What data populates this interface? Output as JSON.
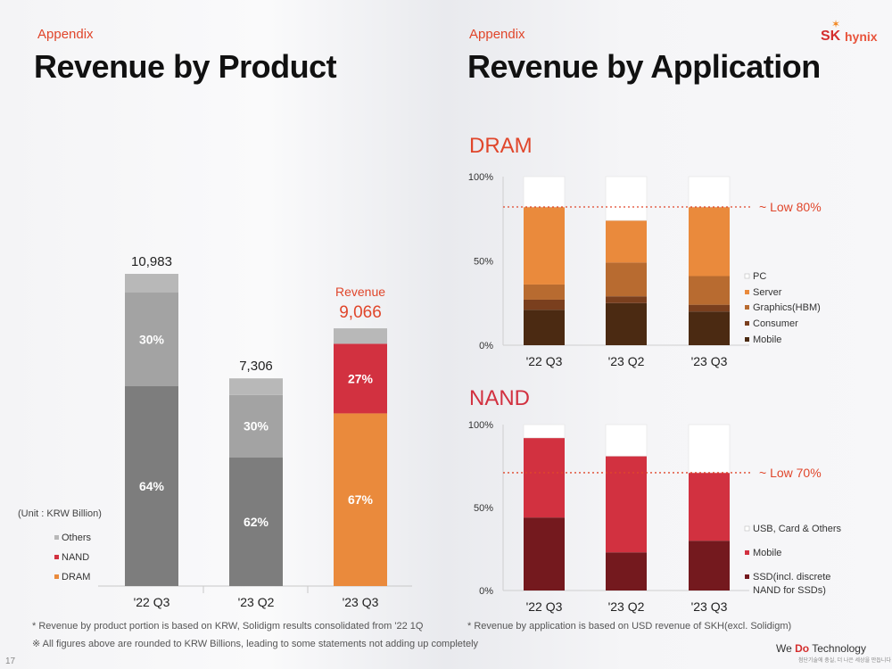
{
  "left": {
    "tag": "Appendix",
    "title": "Revenue by Product"
  },
  "right": {
    "tag": "Appendix",
    "title": "Revenue by Application"
  },
  "logo": {
    "brand": "SK",
    "name": "hynix"
  },
  "colors": {
    "accent": "#e0462b",
    "others": "#b8b8b8",
    "nand": "#d23140",
    "dram": "#ea8a3c",
    "gray_light": "#a3a3a3",
    "gray_dark": "#7d7d7d",
    "pc": "#ffffff",
    "server": "#ea8a3c",
    "graphics": "#b86b30",
    "consumer": "#7a3f1e",
    "mobile_dram": "#4b2a12",
    "usb": "#ffffff",
    "mobile_nand": "#d23140",
    "ssd": "#74191e"
  },
  "chart_data": [
    {
      "type": "bar",
      "stacked": true,
      "title": "Revenue by Product",
      "unit_label": "(Unit : KRW Billion)",
      "categories": [
        "'22 Q3",
        "'23 Q2",
        "'23 Q3"
      ],
      "totals": [
        "10,983",
        "7,306",
        "9,066"
      ],
      "total_values": [
        10983,
        7306,
        9066
      ],
      "revenue_label": "Revenue",
      "legend": [
        "Others",
        "NAND",
        "DRAM"
      ],
      "bars": [
        {
          "segments": [
            {
              "value": 64,
              "label": "64%",
              "color": "#7d7d7d"
            },
            {
              "value": 30,
              "label": "30%",
              "color": "#a3a3a3"
            },
            {
              "value": 6,
              "label": "",
              "color": "#b8b8b8"
            }
          ]
        },
        {
          "segments": [
            {
              "value": 62,
              "label": "62%",
              "color": "#7d7d7d"
            },
            {
              "value": 30,
              "label": "30%",
              "color": "#a3a3a3"
            },
            {
              "value": 8,
              "label": "",
              "color": "#b8b8b8"
            }
          ]
        },
        {
          "segments": [
            {
              "value": 67,
              "label": "67%",
              "color": "#ea8a3c"
            },
            {
              "value": 27,
              "label": "27%",
              "color": "#d23140"
            },
            {
              "value": 6,
              "label": "",
              "color": "#b8b8b8"
            }
          ]
        }
      ],
      "footnotes": [
        "* Revenue by product portion is based on KRW, Solidigm results consolidated from '22 1Q",
        "※ All figures above are rounded to KRW Billions, leading to some statements not adding up completely"
      ]
    },
    {
      "type": "bar",
      "stacked": true,
      "title": "DRAM",
      "categories": [
        "'22 Q3",
        "'23 Q2",
        "'23 Q3"
      ],
      "ylim": [
        0,
        100
      ],
      "yticks": [
        "0%",
        "50%",
        "100%"
      ],
      "series": [
        {
          "name": "Mobile",
          "values": [
            21,
            25,
            20
          ]
        },
        {
          "name": "Consumer",
          "values": [
            6,
            4,
            4
          ]
        },
        {
          "name": "Graphics(HBM)",
          "values": [
            9,
            20,
            17
          ]
        },
        {
          "name": "Server",
          "values": [
            46,
            25,
            41
          ]
        },
        {
          "name": "PC",
          "values": [
            18,
            26,
            18
          ]
        }
      ],
      "reference_line": {
        "value": 82,
        "label": "~ Low 80%"
      }
    },
    {
      "type": "bar",
      "stacked": true,
      "title": "NAND",
      "categories": [
        "'22 Q3",
        "'23 Q2",
        "'23 Q3"
      ],
      "ylim": [
        0,
        100
      ],
      "yticks": [
        "0%",
        "50%",
        "100%"
      ],
      "series": [
        {
          "name": "SSD(incl. discrete|NAND for SSDs)",
          "values": [
            44,
            23,
            30
          ]
        },
        {
          "name": "Mobile",
          "values": [
            48,
            58,
            41
          ]
        },
        {
          "name": "USB, Card & Others",
          "values": [
            8,
            19,
            29
          ]
        }
      ],
      "reference_line": {
        "value": 71,
        "label": "~ Low 70%"
      },
      "footnote": "* Revenue by application is based on USD revenue of SKH(excl. Solidigm)"
    }
  ],
  "footer": {
    "page_number": "17",
    "slogan_pre": "We ",
    "slogan_do": "Do",
    "slogan_post": " Technology",
    "slogan_sub": "첨단기술에 충실, 더 나은 세상을 만듭니다"
  }
}
